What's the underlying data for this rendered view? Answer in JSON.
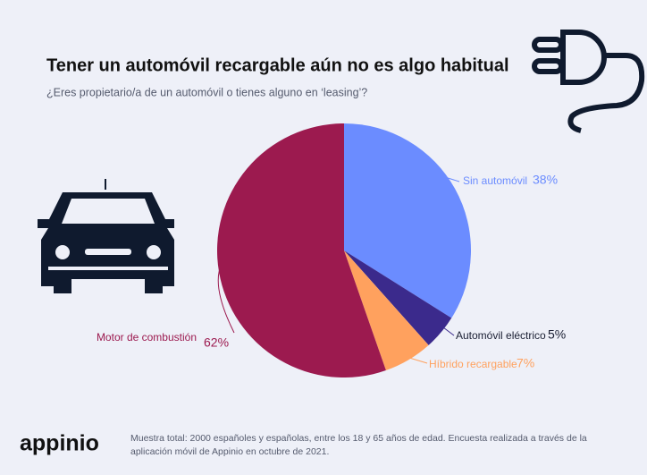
{
  "chart_data": {
    "type": "pie",
    "title": "Tener un automóvil recargable aún no es algo habitual",
    "subtitle": "¿Eres propietario/a de un automóvil o tienes alguno en ‘leasing’?",
    "categories": [
      "Sin automóvil",
      "Automóvil eléctrico",
      "Híbrido recargable",
      "Motor de combustión"
    ],
    "values": [
      38,
      5,
      7,
      62
    ],
    "value_labels": [
      "38%",
      "5%",
      "7%",
      "62%"
    ],
    "colors": [
      "#6b8cff",
      "#3b2a8c",
      "#ffa15e",
      "#9c1a4f"
    ]
  },
  "footer": {
    "brand": "appinio",
    "note": "Muestra total: 2000 españoles y españolas, entre los 18 y 65 años de edad. Encuesta realizada a través de la aplicación móvil de Appinio en octubre de 2021."
  }
}
